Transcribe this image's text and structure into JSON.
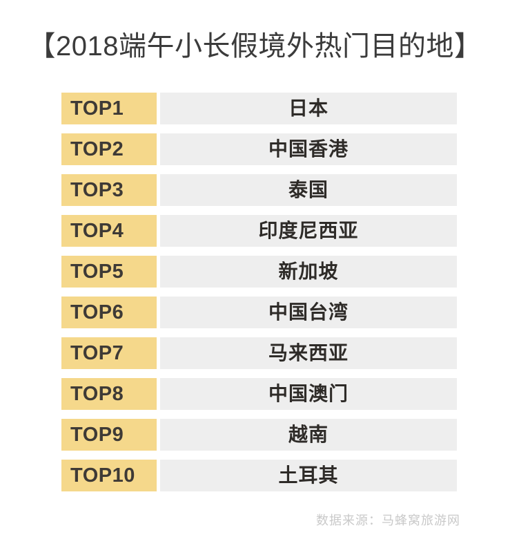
{
  "page": {
    "background_color": "#ffffff"
  },
  "title": {
    "text": "【2018端午小长假境外热门目的地】",
    "color": "#3b3b3b"
  },
  "ranking": {
    "colors": {
      "rank_badge_bg": "#f5d88b",
      "rank_badge_text": "#3e3a36",
      "destination_bg": "#eeeeee",
      "destination_text": "#2e2b28"
    },
    "rows": [
      {
        "rank": "TOP1",
        "destination": "日本"
      },
      {
        "rank": "TOP2",
        "destination": "中国香港"
      },
      {
        "rank": "TOP3",
        "destination": "泰国"
      },
      {
        "rank": "TOP4",
        "destination": "印度尼西亚"
      },
      {
        "rank": "TOP5",
        "destination": "新加坡"
      },
      {
        "rank": "TOP6",
        "destination": "中国台湾"
      },
      {
        "rank": "TOP7",
        "destination": "马来西亚"
      },
      {
        "rank": "TOP8",
        "destination": "中国澳门"
      },
      {
        "rank": "TOP9",
        "destination": "越南"
      },
      {
        "rank": "TOP10",
        "destination": "土耳其"
      }
    ]
  },
  "footer": {
    "source_text": "数据来源：马蜂窝旅游网",
    "color": "#c9c9c9"
  },
  "chart_data": {
    "type": "table",
    "title": "【2018端午小长假境外热门目的地】",
    "columns": [
      "rank",
      "destination"
    ],
    "rows": [
      [
        "TOP1",
        "日本"
      ],
      [
        "TOP2",
        "中国香港"
      ],
      [
        "TOP3",
        "泰国"
      ],
      [
        "TOP4",
        "印度尼西亚"
      ],
      [
        "TOP5",
        "新加坡"
      ],
      [
        "TOP6",
        "中国台湾"
      ],
      [
        "TOP7",
        "马来西亚"
      ],
      [
        "TOP8",
        "中国澳门"
      ],
      [
        "TOP9",
        "越南"
      ],
      [
        "TOP10",
        "土耳其"
      ]
    ],
    "source": "数据来源：马蜂窝旅游网",
    "legend_position": "none",
    "grid": false
  }
}
